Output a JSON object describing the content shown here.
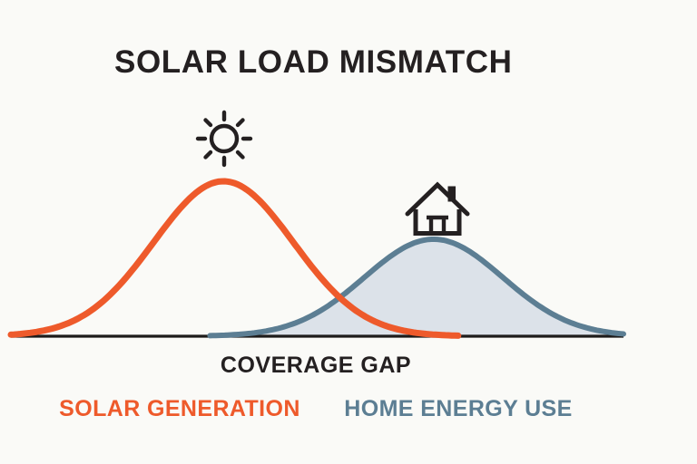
{
  "title": "SOLAR LOAD MISMATCH",
  "annotation": "COVERAGE GAP",
  "legend": [
    {
      "label": "SOLAR GENERATION",
      "color": "#EE5A2B"
    },
    {
      "label": "HOME ENERGY USE",
      "color": "#5C7E93"
    }
  ],
  "icons": [
    {
      "name": "sun-icon",
      "meaning": "sun above solar generation peak"
    },
    {
      "name": "house-icon",
      "meaning": "house above home energy use peak"
    }
  ],
  "colors": {
    "background": "#FAFAF7",
    "ink": "#242021",
    "axis": "#1D1B1A",
    "solar_orange": "#EE5A2B",
    "home_blue": "#5C7E93",
    "home_blue_fill": "#DCE2E9"
  },
  "chart_data": {
    "type": "area",
    "title": "SOLAR LOAD MISMATCH",
    "xlabel": "COVERAGE GAP",
    "grid": false,
    "axes": {
      "x_visible": true,
      "y_visible": false,
      "tick_labels": []
    },
    "legend_position": "bottom",
    "series": [
      {
        "name": "SOLAR GENERATION",
        "type": "line",
        "color": "#EE5A2B",
        "fill": "none",
        "shape": "gaussian",
        "peak_x_frac": 0.347,
        "amplitude_frac": 1.0,
        "sigma_frac": 0.114,
        "draw_range_frac": [
          0.0,
          0.73
        ]
      },
      {
        "name": "HOME ENERGY USE",
        "type": "area",
        "color": "#5C7E93",
        "fill": "#DCE2E9",
        "shape": "gaussian",
        "peak_x_frac": 0.69,
        "amplitude_frac": 0.626,
        "sigma_frac": 0.113,
        "draw_range_frac": [
          0.325,
          1.0
        ]
      }
    ],
    "samples": {
      "x_frac": [
        0,
        0.1,
        0.2,
        0.3,
        0.4,
        0.5,
        0.6,
        0.7,
        0.8,
        0.9,
        1.0
      ],
      "solar_generation": [
        0.01,
        0.1,
        0.44,
        0.92,
        0.9,
        0.41,
        0.09,
        0.01,
        0.0,
        0.0,
        0.0
      ],
      "home_energy_use": [
        0.0,
        0.0,
        0.0,
        0.002,
        0.023,
        0.15,
        0.46,
        0.63,
        0.39,
        0.11,
        0.02
      ]
    }
  }
}
